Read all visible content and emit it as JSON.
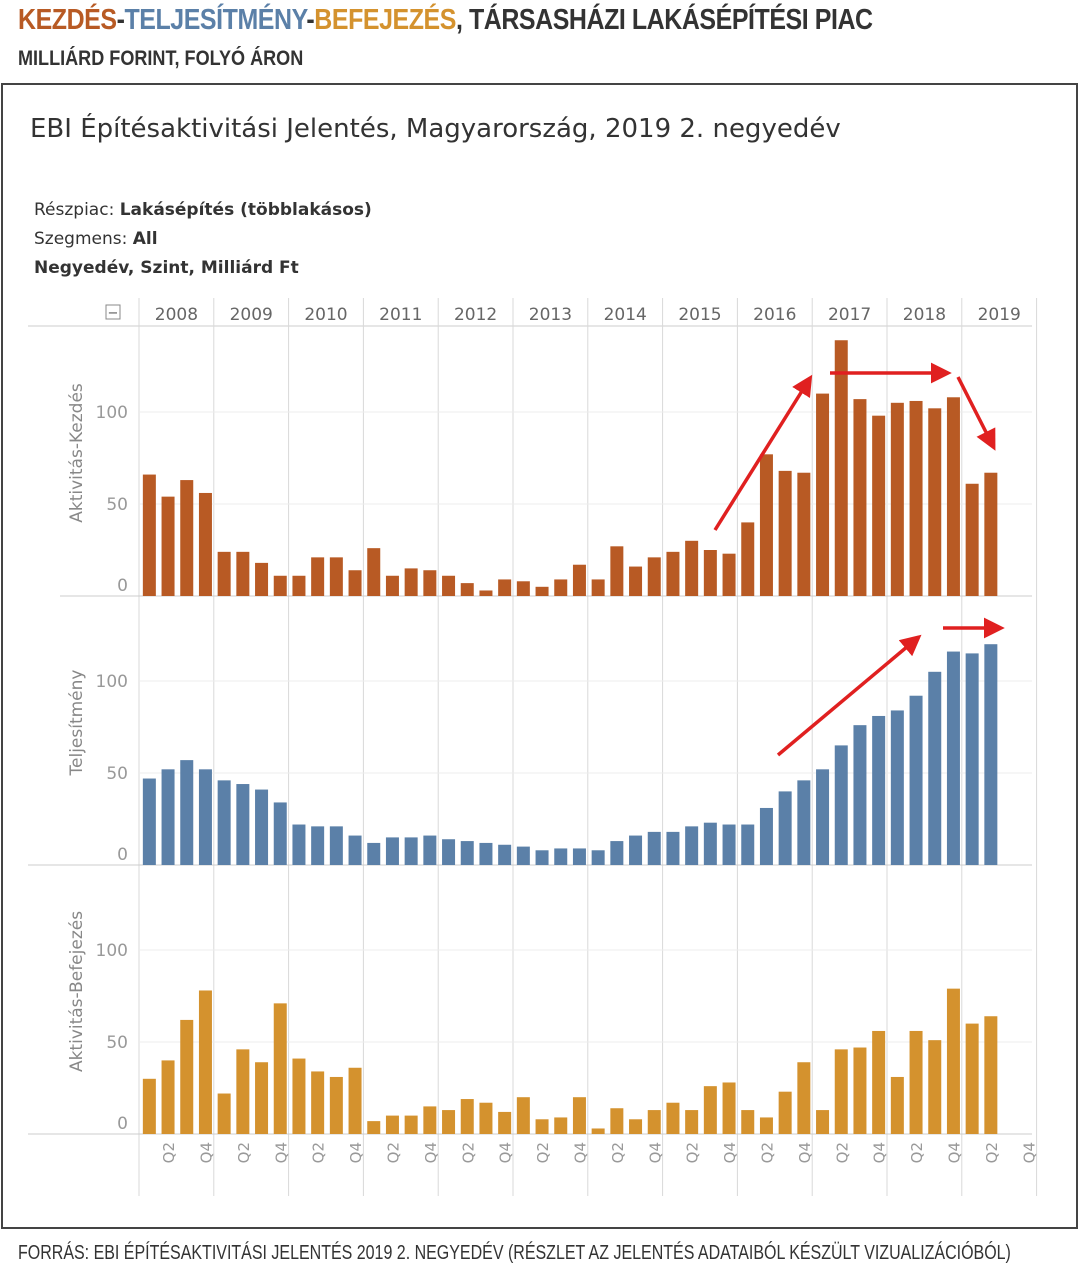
{
  "header": {
    "title_part1": "KEZDÉS",
    "sep1": "-",
    "title_part2": "TELJESÍTMÉNY",
    "sep2": "-",
    "title_part3": "BEFEJEZÉS",
    "title_part4": ", TÁRSASHÁZI LAKÁSÉPÍTÉSI PIAC",
    "subtitle": "MILLIÁRD FORINT, FOLYÓ ÁRON"
  },
  "chart_title": "EBI Építésaktivitási Jelentés, Magyarország, 2019 2. negyedév",
  "meta": {
    "line1_label": "Részpiac: ",
    "line1_value": "Lakásépítés (többlakásos)",
    "line2_label": "Szegmens: ",
    "line2_value": "All",
    "line3": "Negyedév, Szint, Milliárd Ft"
  },
  "collapse_symbol": "−",
  "source": "FORRÁS: EBI ÉPÍTÉSAKTIVITÁSI JELENTÉS 2019 2. NEGYEDÉV (RÉSZLET AZ JELENTÉS ADATAIBÓL KÉSZÜLT VIZUALIZÁCIÓBÓL)",
  "colors": {
    "kezdes": "#b85a24",
    "teljesitmeny": "#5b80a8",
    "befejezes": "#d4922e",
    "arrow": "#e02020"
  },
  "chart_data": {
    "type": "bar",
    "years": [
      "2008",
      "2009",
      "2010",
      "2011",
      "2012",
      "2013",
      "2014",
      "2015",
      "2016",
      "2017",
      "2018",
      "2019"
    ],
    "quarter_tick_labels": [
      "Q2",
      "Q4"
    ],
    "series": [
      {
        "name": "Aktivitás-Kezdés",
        "ylim": [
          0,
          140
        ],
        "yticks": [
          0,
          50,
          100
        ],
        "values": [
          66,
          54,
          63,
          56,
          24,
          24,
          18,
          11,
          11,
          21,
          21,
          14,
          26,
          11,
          15,
          14,
          11,
          7,
          3,
          9,
          8,
          5,
          9,
          17,
          9,
          27,
          16,
          21,
          24,
          30,
          25,
          23,
          40,
          77,
          68,
          67,
          110,
          139,
          107,
          98,
          105,
          106,
          102,
          108,
          61,
          67
        ]
      },
      {
        "name": "Teljesítmény",
        "ylim": [
          0,
          140
        ],
        "yticks": [
          0,
          50,
          100
        ],
        "values": [
          47,
          52,
          57,
          52,
          46,
          44,
          41,
          34,
          22,
          21,
          21,
          16,
          12,
          15,
          15,
          16,
          14,
          13,
          12,
          11,
          10,
          8,
          9,
          9,
          8,
          13,
          16,
          18,
          18,
          21,
          23,
          22,
          22,
          31,
          40,
          46,
          52,
          65,
          76,
          81,
          84,
          92,
          105,
          116,
          115,
          120
        ]
      },
      {
        "name": "Aktivitás-Befejezés",
        "ylim": [
          0,
          140
        ],
        "yticks": [
          0,
          50,
          100
        ],
        "values": [
          30,
          40,
          62,
          78,
          22,
          46,
          39,
          71,
          41,
          34,
          31,
          36,
          7,
          10,
          10,
          15,
          13,
          19,
          17,
          12,
          20,
          8,
          9,
          20,
          3,
          14,
          8,
          13,
          17,
          13,
          26,
          28,
          13,
          9,
          23,
          39,
          13,
          46,
          47,
          56,
          31,
          56,
          51,
          79,
          60,
          64
        ]
      }
    ],
    "annotations": "red arrows marking rise and fall of starts and rise of output"
  }
}
